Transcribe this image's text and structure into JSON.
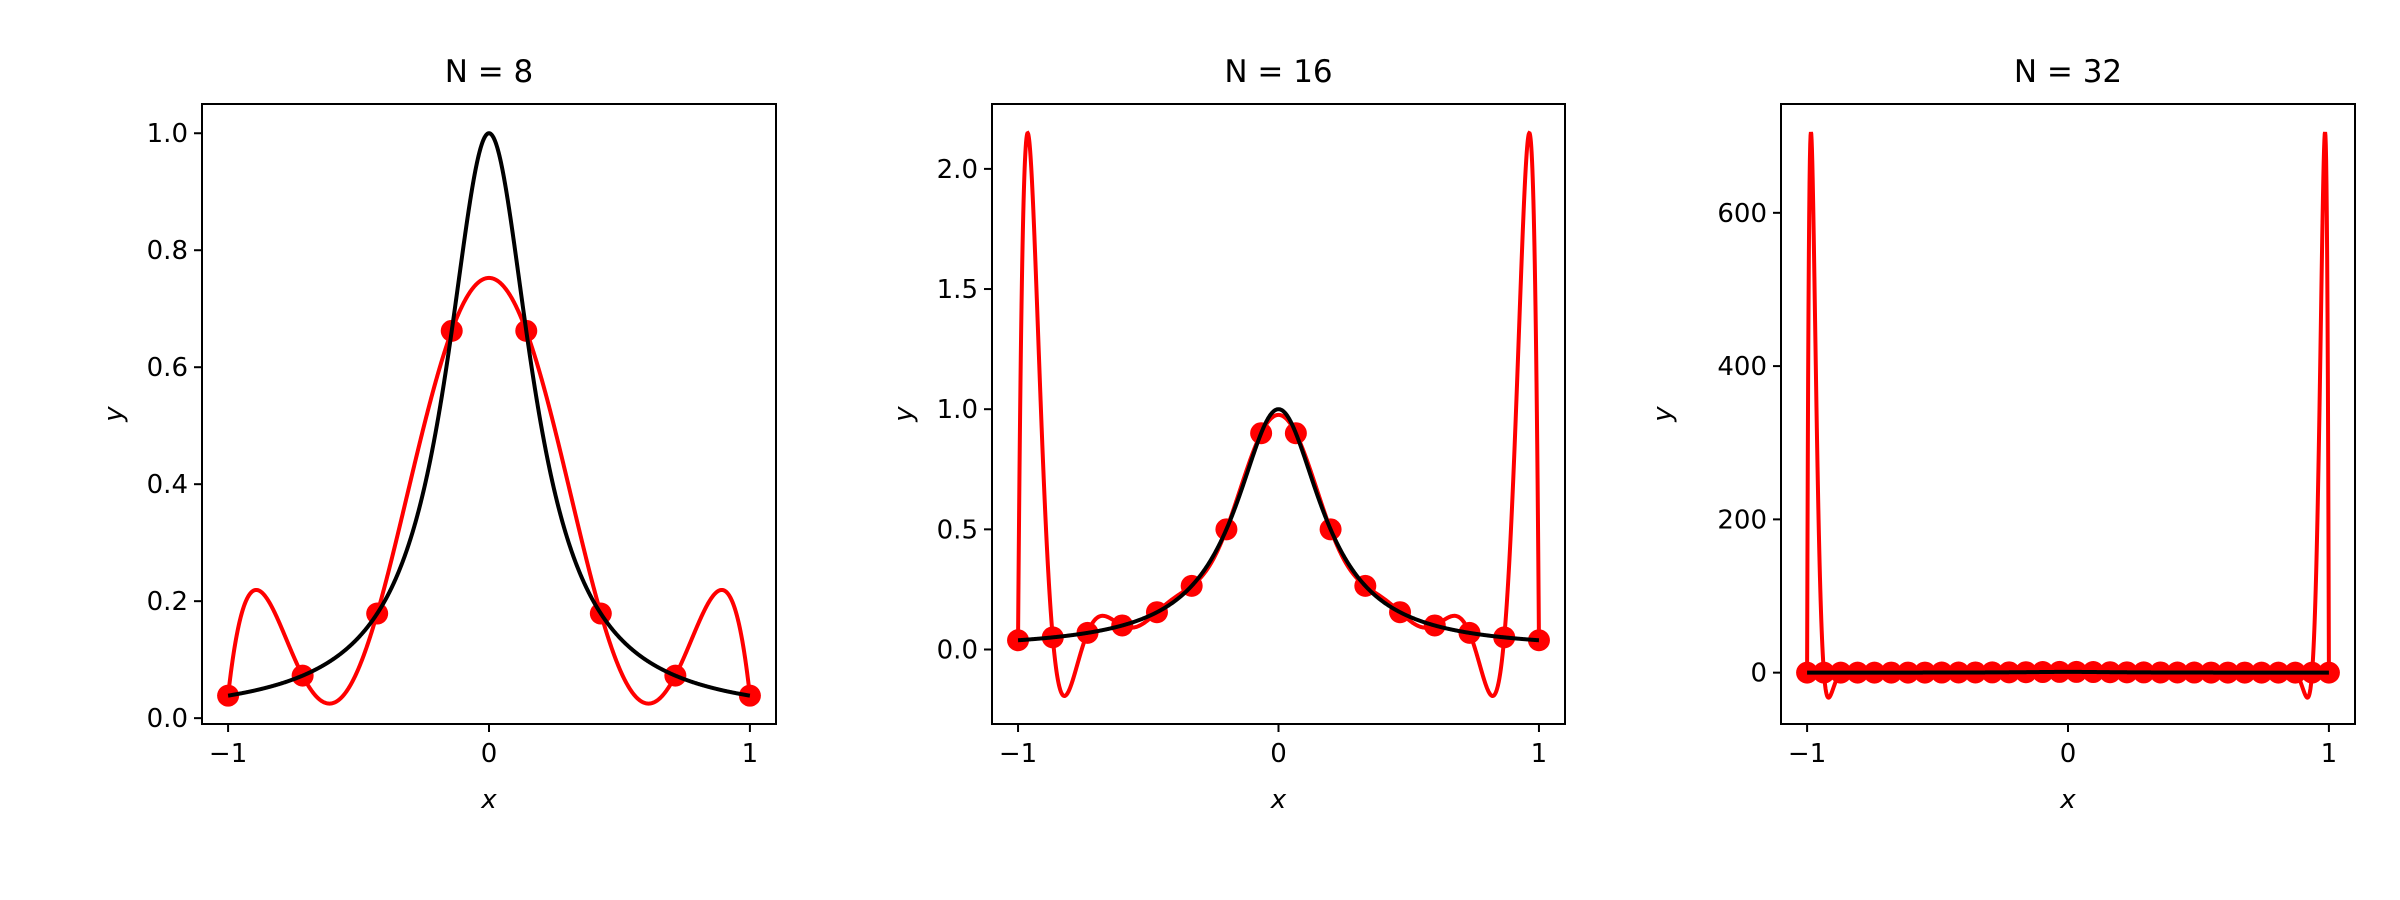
{
  "chart_data": [
    {
      "type": "line",
      "title": "N = 8",
      "xlabel": "x",
      "ylabel": "y",
      "function": "1/(1+25x^2)",
      "node_count": 8,
      "node_spacing": "equispaced",
      "xlim": [
        -1.1,
        1.1
      ],
      "ylim": [
        -0.01,
        1.05
      ],
      "xticks": [
        -1,
        0,
        1
      ],
      "xtick_labels": [
        "−1",
        "0",
        "1"
      ],
      "yticks": [
        0,
        0.2,
        0.4,
        0.6,
        0.8,
        1.0
      ],
      "ytick_labels": [
        "0.0",
        "0.2",
        "0.4",
        "0.6",
        "0.8",
        "1.0"
      ],
      "grid": false,
      "series": [
        {
          "role": "exact function",
          "color": "#000000"
        },
        {
          "role": "interpolating polynomial",
          "color": "#ff0000"
        },
        {
          "role": "interpolation nodes",
          "color": "#ff0000",
          "marker": "circle"
        }
      ]
    },
    {
      "type": "line",
      "title": "N = 16",
      "xlabel": "x",
      "ylabel": "y",
      "function": "1/(1+25x^2)",
      "node_count": 16,
      "node_spacing": "equispaced",
      "xlim": [
        -1.1,
        1.1
      ],
      "ylim": [
        -0.31,
        2.27
      ],
      "xticks": [
        -1,
        0,
        1
      ],
      "xtick_labels": [
        "−1",
        "0",
        "1"
      ],
      "yticks": [
        0,
        0.5,
        1.0,
        1.5,
        2.0
      ],
      "ytick_labels": [
        "0.0",
        "0.5",
        "1.0",
        "1.5",
        "2.0"
      ],
      "grid": false,
      "series": [
        {
          "role": "exact function",
          "color": "#000000"
        },
        {
          "role": "interpolating polynomial",
          "color": "#ff0000"
        },
        {
          "role": "interpolation nodes",
          "color": "#ff0000",
          "marker": "circle"
        }
      ]
    },
    {
      "type": "line",
      "title": "N = 32",
      "xlabel": "x",
      "ylabel": "y",
      "function": "1/(1+25x^2)",
      "node_count": 32,
      "node_spacing": "equispaced",
      "xlim": [
        -1.1,
        1.1
      ],
      "ylim": [
        -67,
        742
      ],
      "xticks": [
        -1,
        0,
        1
      ],
      "xtick_labels": [
        "−1",
        "0",
        "1"
      ],
      "yticks": [
        0,
        200,
        400,
        600
      ],
      "ytick_labels": [
        "0",
        "200",
        "400",
        "600"
      ],
      "grid": false,
      "series": [
        {
          "role": "exact function",
          "color": "#000000"
        },
        {
          "role": "interpolating polynomial",
          "color": "#ff0000"
        },
        {
          "role": "interpolation nodes",
          "color": "#ff0000",
          "marker": "circle"
        }
      ]
    }
  ]
}
